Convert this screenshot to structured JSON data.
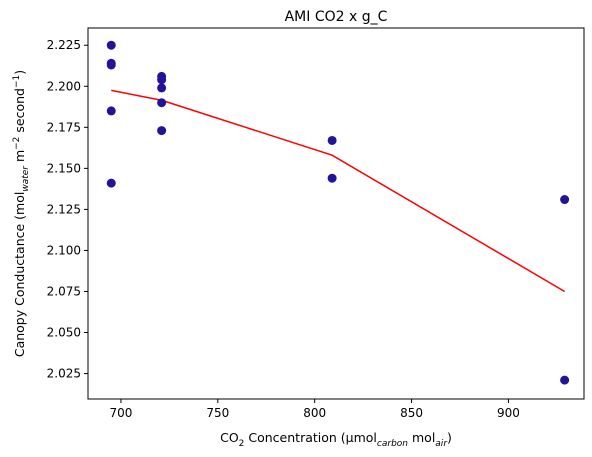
{
  "chart_data": {
    "type": "scatter",
    "title": "AMI CO2 x g_C",
    "xlabel": {
      "parts": [
        {
          "text": "CO",
          "style": "normal"
        },
        {
          "text": "2",
          "style": "sub"
        },
        {
          "text": " Concentration (μmol",
          "style": "normal"
        },
        {
          "text": "carbon",
          "style": "sub-italic"
        },
        {
          "text": " mol",
          "style": "normal"
        },
        {
          "text": "air",
          "style": "sub-italic"
        },
        {
          "text": ")",
          "style": "normal"
        }
      ]
    },
    "ylabel": {
      "parts": [
        {
          "text": "Canopy Conductance (mol",
          "style": "normal"
        },
        {
          "text": "water",
          "style": "sub-italic"
        },
        {
          "text": " m",
          "style": "normal"
        },
        {
          "text": "−2",
          "style": "sup"
        },
        {
          "text": " second",
          "style": "normal"
        },
        {
          "text": "−1",
          "style": "sup"
        },
        {
          "text": ")",
          "style": "normal"
        }
      ]
    },
    "xlim": [
      683,
      939
    ],
    "ylim": [
      2.0095,
      2.2355
    ],
    "xticks": [
      700,
      750,
      800,
      850,
      900
    ],
    "yticks": [
      2.025,
      2.05,
      2.075,
      2.1,
      2.125,
      2.15,
      2.175,
      2.2,
      2.225
    ],
    "ytick_format": 3,
    "grid": false,
    "series": [
      {
        "kind": "scatter",
        "color": "#23139a",
        "points": [
          {
            "x": 695,
            "y": 2.225
          },
          {
            "x": 695,
            "y": 2.214
          },
          {
            "x": 695,
            "y": 2.213
          },
          {
            "x": 695,
            "y": 2.185
          },
          {
            "x": 695,
            "y": 2.141
          },
          {
            "x": 721,
            "y": 2.206
          },
          {
            "x": 721,
            "y": 2.204
          },
          {
            "x": 721,
            "y": 2.199
          },
          {
            "x": 721,
            "y": 2.19
          },
          {
            "x": 721,
            "y": 2.173
          },
          {
            "x": 809,
            "y": 2.167
          },
          {
            "x": 809,
            "y": 2.144
          },
          {
            "x": 929,
            "y": 2.131
          },
          {
            "x": 929,
            "y": 2.021
          }
        ]
      },
      {
        "kind": "line",
        "color": "#ff0000",
        "points": [
          {
            "x": 695,
            "y": 2.1975
          },
          {
            "x": 721,
            "y": 2.1915
          },
          {
            "x": 809,
            "y": 2.158
          },
          {
            "x": 929,
            "y": 2.075
          }
        ]
      }
    ]
  }
}
